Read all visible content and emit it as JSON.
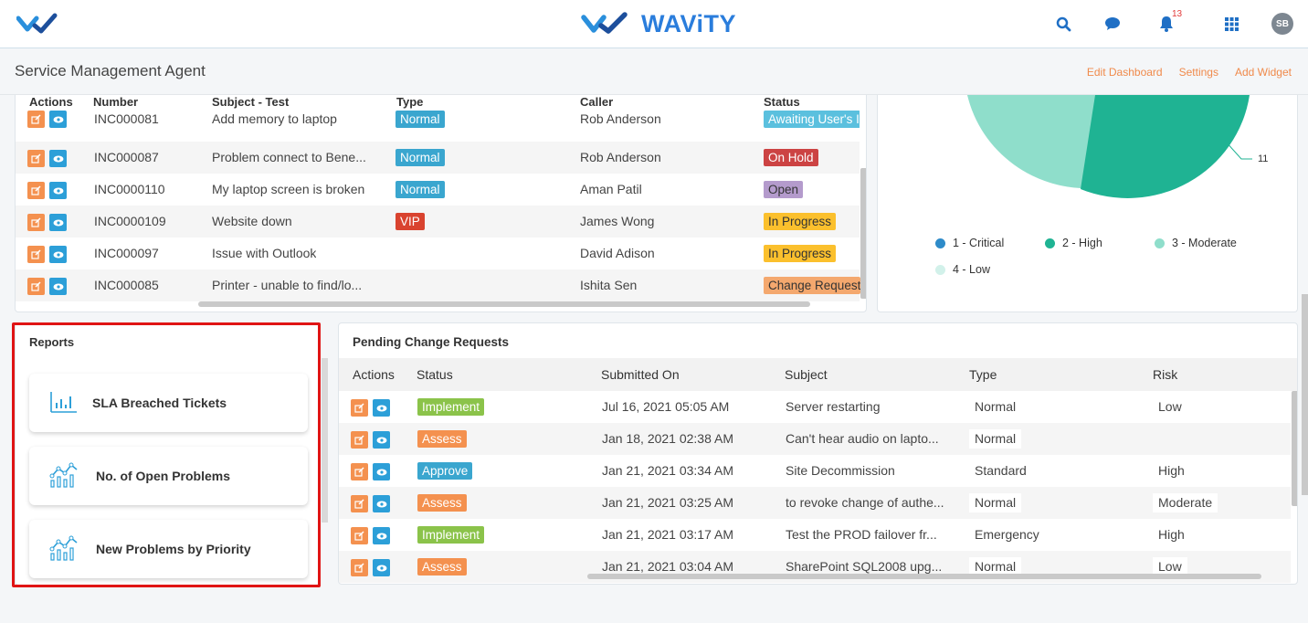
{
  "header": {
    "brand_name": "WAViTY",
    "notification_count": "13",
    "avatar_initials": "SB"
  },
  "subheader": {
    "title": "Service Management Agent",
    "links": [
      "Edit Dashboard",
      "Settings",
      "Add Widget"
    ]
  },
  "incidents": {
    "columns": [
      "Actions",
      "Number",
      "Subject - Test",
      "Type",
      "Caller",
      "Status"
    ],
    "rows": [
      {
        "number": "INC000081",
        "subject": "Add memory to laptop",
        "type": "Normal",
        "caller": "Rob Anderson",
        "status": "Awaiting User's Info"
      },
      {
        "number": "INC000087",
        "subject": "Problem connect to Bene...",
        "type": "Normal",
        "caller": "Rob Anderson",
        "status": "On Hold"
      },
      {
        "number": "INC0000110",
        "subject": "My laptop screen is broken",
        "type": "Normal",
        "caller": "Aman Patil",
        "status": "Open"
      },
      {
        "number": "INC0000109",
        "subject": "Website down",
        "type": "VIP",
        "caller": "James Wong",
        "status": "In Progress"
      },
      {
        "number": "INC000097",
        "subject": "Issue with Outlook",
        "type": "",
        "caller": "David Adison",
        "status": "In Progress"
      },
      {
        "number": "INC000085",
        "subject": "Printer - unable to find/lo...",
        "type": "",
        "caller": "Ishita Sen",
        "status": "Change Request"
      }
    ]
  },
  "priority_chart": {
    "visible_label": "11",
    "legend": [
      "1 - Critical",
      "2 - High",
      "3 - Moderate",
      "4 - Low"
    ],
    "colors": {
      "critical": "#2e8bc9",
      "high": "#1fb393",
      "moderate": "#8fdecb",
      "low": "#d2f1ea"
    }
  },
  "reports": {
    "title": "Reports",
    "items": [
      "SLA Breached Tickets",
      "No. of Open Problems",
      "New Problems by Priority"
    ]
  },
  "change_requests": {
    "title": "Pending Change Requests",
    "columns": [
      "Actions",
      "Status",
      "Submitted On",
      "Subject",
      "Type",
      "Risk"
    ],
    "rows": [
      {
        "status": "Implement",
        "submitted": "Jul 16, 2021 05:05 AM",
        "subject": "Server restarting",
        "type": "Normal",
        "risk": "Low"
      },
      {
        "status": "Assess",
        "submitted": "Jan 18, 2021 02:38 AM",
        "subject": "Can't hear audio on lapto...",
        "type": "Normal",
        "risk": ""
      },
      {
        "status": "Approve",
        "submitted": "Jan 21, 2021 03:34 AM",
        "subject": "Site Decommission",
        "type": "Standard",
        "risk": "High"
      },
      {
        "status": "Assess",
        "submitted": "Jan 21, 2021 03:25 AM",
        "subject": "to revoke change of authe...",
        "type": "Normal",
        "risk": "Moderate"
      },
      {
        "status": "Implement",
        "submitted": "Jan 21, 2021 03:17 AM",
        "subject": "Test the PROD failover fr...",
        "type": "Emergency",
        "risk": "High"
      },
      {
        "status": "Assess",
        "submitted": "Jan 21, 2021 03:04 AM",
        "subject": "SharePoint SQL2008 upg...",
        "type": "Normal",
        "risk": "Low"
      }
    ]
  },
  "colors": {
    "accent_orange": "#f4914f",
    "accent_blue": "#2c9fd8",
    "brand_blue": "#2a7ddc"
  }
}
